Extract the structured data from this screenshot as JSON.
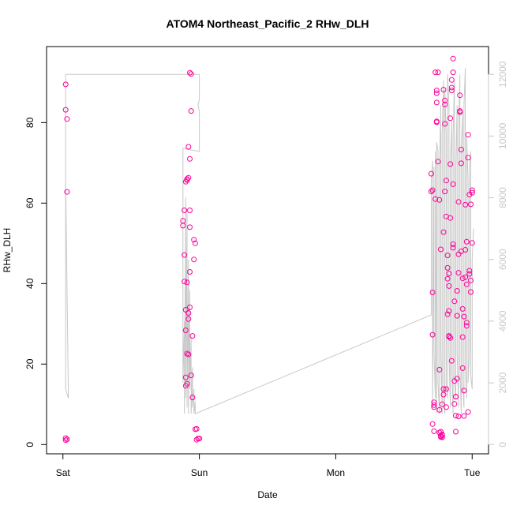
{
  "chart_data": {
    "type": "scatter",
    "title": "ATOM4 Northeast_Pacific_2 RHw_DLH",
    "xlabel": "Date",
    "ylabel": "RHw_DLH",
    "x_ticks": [
      "Sat",
      "Sun",
      "Mon",
      "Tue"
    ],
    "x_tick_days": [
      0,
      1,
      2,
      3
    ],
    "xlim_days": [
      -0.12,
      3.12
    ],
    "y_ticks": [
      0,
      20,
      40,
      60,
      80
    ],
    "ylim": [
      -2.3,
      98.9
    ],
    "y2_ticks": [
      0,
      2000,
      4000,
      6000,
      8000,
      10000,
      12000
    ],
    "y2lim": [
      -300,
      12900
    ],
    "grid": false,
    "legend": "none",
    "colors": {
      "points": "#ff0099",
      "line": "#c8c8c8",
      "axis": "#000000",
      "right_axis": "#c8c8c8"
    },
    "series": [
      {
        "role": "points",
        "x_days": [
          0.02,
          0.02,
          0.03,
          0.03,
          0.02,
          0.03,
          0.02,
          0.88,
          0.88,
          0.89,
          0.89,
          0.89,
          0.9,
          0.9,
          0.9,
          0.9,
          0.9,
          0.91,
          0.91,
          0.91,
          0.91,
          0.91,
          0.92,
          0.92,
          0.92,
          0.92,
          0.92,
          0.93,
          0.93,
          0.93,
          0.93,
          0.93,
          0.93,
          0.94,
          0.94,
          0.94,
          0.95,
          0.95,
          0.96,
          0.96,
          0.97,
          0.97,
          0.98,
          0.98,
          0.99,
          1.0,
          2.7,
          2.7,
          2.71,
          2.71,
          2.71,
          2.71,
          2.72,
          2.72,
          2.72,
          2.72,
          2.73,
          2.73,
          2.74,
          2.74,
          2.74,
          2.74,
          2.74,
          2.75,
          2.75,
          2.76,
          2.76,
          2.76,
          2.77,
          2.77,
          2.77,
          2.78,
          2.78,
          2.78,
          2.78,
          2.79,
          2.79,
          2.79,
          2.8,
          2.8,
          2.8,
          2.81,
          2.81,
          2.81,
          2.81,
          2.82,
          2.82,
          2.82,
          2.82,
          2.83,
          2.83,
          2.83,
          2.83,
          2.84,
          2.84,
          2.84,
          2.84,
          2.85,
          2.85,
          2.85,
          2.86,
          2.86,
          2.86,
          2.86,
          2.87,
          2.87,
          2.87,
          2.88,
          2.88,
          2.88,
          2.89,
          2.89,
          2.89,
          2.9,
          2.9,
          2.9,
          2.91,
          2.91,
          2.91,
          2.92,
          2.92,
          2.92,
          2.93,
          2.93,
          2.93,
          2.94,
          2.94,
          2.94,
          2.95,
          2.95,
          2.95,
          2.96,
          2.96,
          2.96,
          2.97,
          2.97,
          2.97,
          2.98,
          2.98,
          2.98,
          2.99,
          2.99,
          2.99,
          3.0,
          3.0,
          3.0,
          2.96,
          2.76,
          2.79,
          2.83,
          2.85,
          2.88,
          2.9,
          2.93,
          2.77,
          2.8,
          2.86
        ],
        "y": [
          89.5,
          83.2,
          80.9,
          62.8,
          1.6,
          1.3,
          1.1,
          55.6,
          54.4,
          58.2,
          47.1,
          40.5,
          28.4,
          33.5,
          14.6,
          16.7,
          65.3,
          66,
          65.7,
          22.6,
          15.1,
          40.3,
          74,
          66.3,
          31.2,
          32.7,
          22.4,
          71,
          58.2,
          42.9,
          54,
          34.1,
          92.4,
          92.1,
          82.9,
          17.2,
          11.7,
          27,
          46,
          50.9,
          50,
          3.8,
          3.9,
          1.2,
          1.5,
          1.5,
          67.3,
          62.9,
          63.2,
          37.8,
          27.3,
          5.1,
          3.3,
          10.5,
          9.3,
          9.8,
          61,
          92.5,
          80.1,
          88,
          87.3,
          85,
          80.3,
          70.3,
          92.5,
          18.6,
          8.6,
          3,
          3.2,
          2.1,
          1.9,
          1.8,
          2.5,
          2.3,
          10,
          12.4,
          52.8,
          13.8,
          84.5,
          85.5,
          79.7,
          65.6,
          13.8,
          9.3,
          56.7,
          32.4,
          47,
          41.2,
          43.9,
          42.5,
          39.4,
          33.2,
          27,
          26.5,
          56.3,
          69.7,
          81.1,
          88.7,
          90.6,
          88,
          92.5,
          95.9,
          64.7,
          48.9,
          35.6,
          10.1,
          15.8,
          7.2,
          11.9,
          11.9,
          16.4,
          32,
          38.2,
          47.3,
          42.7,
          60.3,
          86.8,
          82.9,
          82.6,
          69.9,
          73.3,
          48,
          33.7,
          26.7,
          19,
          13.4,
          7.1,
          31.8,
          41.6,
          59.6,
          48.4,
          39.8,
          29.5,
          30.3,
          8.1,
          71.3,
          77,
          42.4,
          43.2,
          62.1,
          40.8,
          37.9,
          59.7,
          62.6,
          63.2,
          50.1,
          50.4,
          60.8,
          88.2,
          26.8,
          20.8,
          3.2,
          7,
          41.3,
          48.5,
          62.9,
          49.8
        ]
      },
      {
        "role": "line",
        "axis": "right",
        "x_days": [
          0.02,
          0.02,
          0.04,
          0.02,
          0.02,
          0.03,
          0.03,
          1.0,
          1.0,
          0.99,
          1.0,
          1.0,
          0.88,
          0.88,
          0.89,
          0.89,
          0.9,
          0.9,
          0.91,
          0.91,
          0.92,
          0.92,
          0.93,
          0.93,
          0.94,
          0.94,
          0.95,
          0.95,
          0.96,
          0.96,
          0.97,
          0.97,
          2.7,
          2.7,
          2.71,
          2.71,
          2.72,
          2.72,
          2.73,
          2.73,
          2.74,
          2.74,
          2.75,
          2.75,
          2.76,
          2.76,
          2.77,
          2.77,
          2.78,
          2.78,
          2.79,
          2.79,
          2.8,
          2.8,
          2.81,
          2.81,
          2.82,
          2.82,
          2.83,
          2.83,
          2.84,
          2.84,
          2.85,
          2.85,
          2.86,
          2.86,
          2.87,
          2.87,
          2.88,
          2.88,
          2.89,
          2.89,
          2.9,
          2.9,
          2.91,
          2.91,
          2.92,
          2.92,
          2.93,
          2.93,
          2.94,
          2.94,
          2.95,
          2.95,
          2.96,
          2.96,
          2.97,
          2.97,
          2.98,
          2.98,
          2.99,
          2.99,
          3.0,
          3.0,
          3.01
        ],
        "y": [
          12000,
          8500,
          1500,
          1800,
          12000,
          12000,
          12000,
          12000,
          11200,
          11000,
          10800,
          9500,
          9600,
          2000,
          4000,
          1000,
          8000,
          1500,
          7500,
          1200,
          6000,
          1000,
          5000,
          1800,
          3500,
          1000,
          2500,
          1200,
          1800,
          1000,
          1400,
          1000,
          4200,
          8500,
          9200,
          1200,
          9000,
          3000,
          1500,
          9500,
          1000,
          9800,
          9500,
          2000,
          1000,
          9000,
          11000,
          3000,
          1000,
          10000,
          11800,
          1500,
          1000,
          11500,
          10000,
          2000,
          1500,
          12000,
          11000,
          3000,
          1200,
          9000,
          10500,
          2500,
          1000,
          10000,
          11800,
          2000,
          1500,
          9000,
          11000,
          3000,
          1200,
          10000,
          12000,
          2500,
          1000,
          9500,
          10800,
          2000,
          1200,
          11000,
          12200,
          2500,
          1500,
          10000,
          8500,
          2000,
          3000,
          9000,
          9500,
          2200,
          1800,
          6000,
          7000
        ]
      }
    ]
  }
}
